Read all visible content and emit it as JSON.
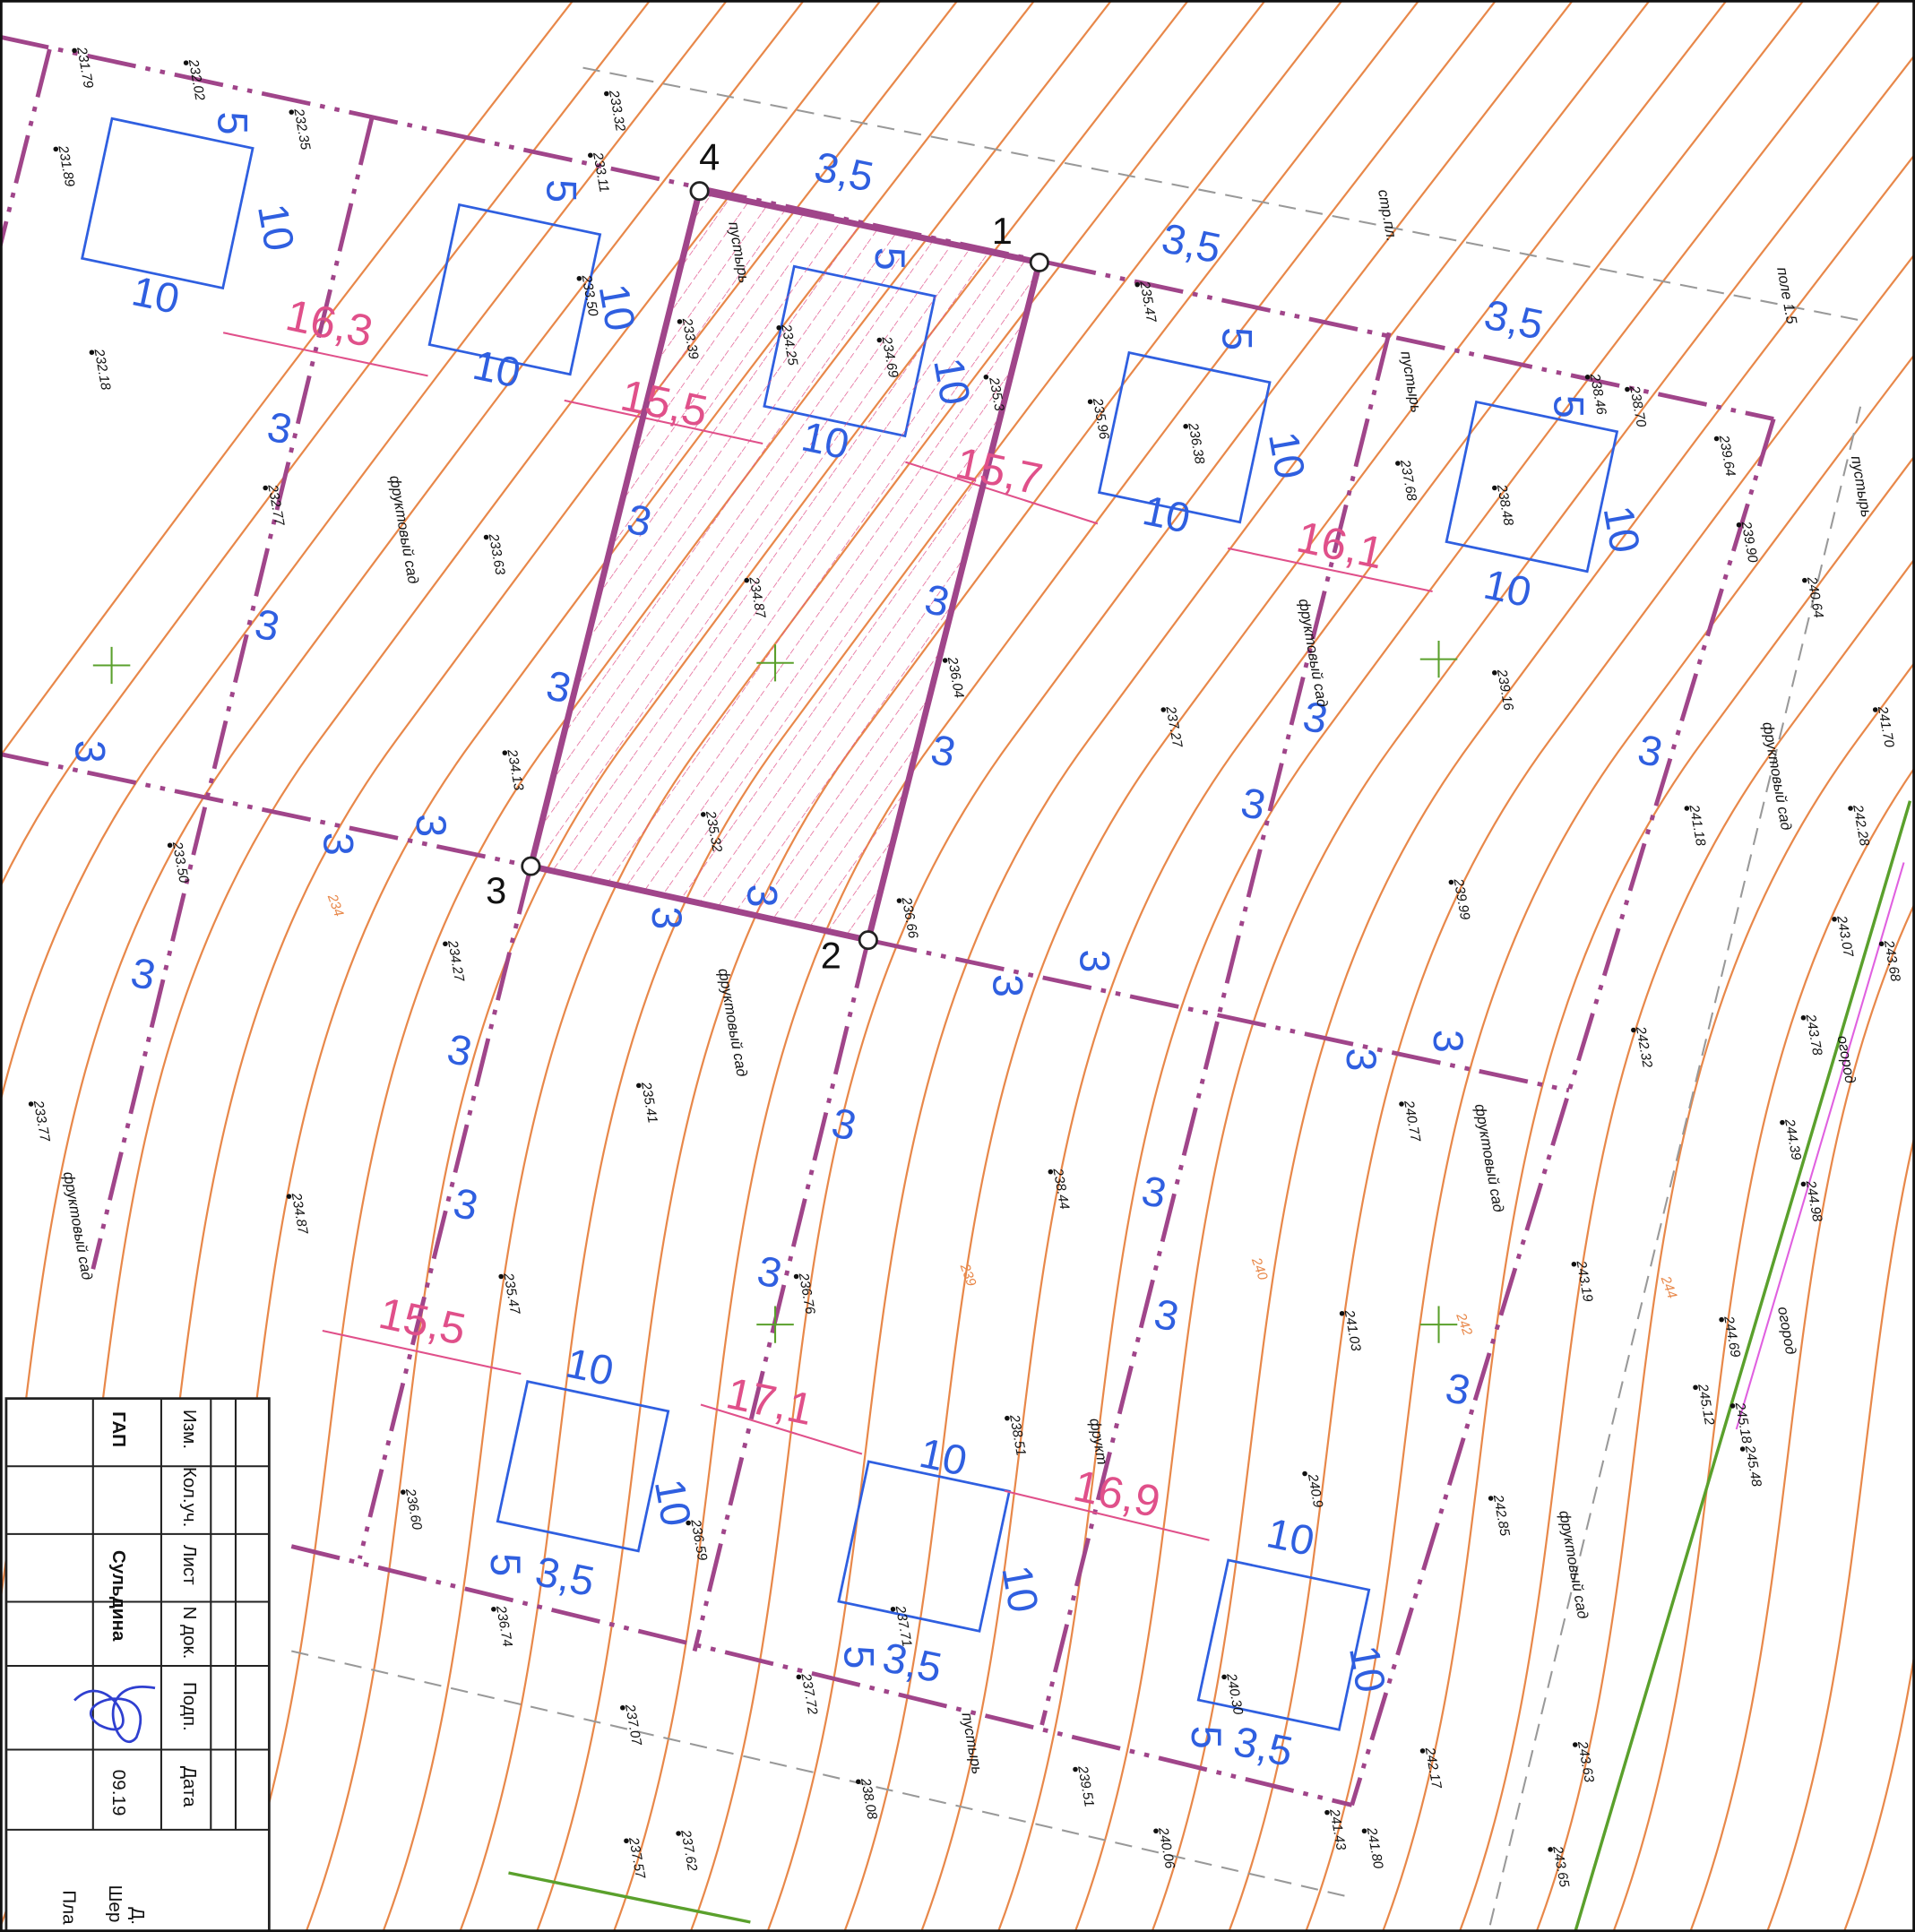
{
  "corners": [
    "1",
    "2",
    "3",
    "4"
  ],
  "dimensions_pink": [
    "16,3",
    "15,5",
    "15,7",
    "16,1",
    "15,5",
    "17,1",
    "16,9"
  ],
  "dimensions_blue": [
    "3,5",
    "5",
    "10",
    "10",
    "10",
    "10",
    "5",
    "5",
    "10",
    "10",
    "3,5",
    "5",
    "10",
    "10",
    "3,5",
    "5",
    "10",
    "10",
    "3",
    "3",
    "3",
    "3",
    "3",
    "3",
    "3",
    "3",
    "3",
    "3",
    "3",
    "3",
    "3",
    "3",
    "3",
    "3",
    "3",
    "3",
    "3",
    "3",
    "3",
    "3",
    "3",
    "3",
    "3",
    "3",
    "10",
    "10",
    "5",
    "3,5",
    "10",
    "10",
    "5",
    "3,5",
    "10",
    "10",
    "5",
    "3,5"
  ],
  "elevations": [
    "231.79",
    "232.02",
    "232.35",
    "231.89",
    "233.32",
    "233.11",
    "233.50",
    "232.18",
    "233.39",
    "234.25",
    "234.69",
    "235.3",
    "235.96",
    "236.38",
    "235.47",
    "237.68",
    "238.48",
    "238.46",
    "238.70",
    "239.64",
    "239.90",
    "240.64",
    "232.77",
    "233.63",
    "234.87",
    "236.04",
    "237.27",
    "239.16",
    "241.70",
    "242.28",
    "241.18",
    "234.13",
    "235.32",
    "236.66",
    "239.99",
    "243.07",
    "243.68",
    "233.50",
    "234.27",
    "242.32",
    "243.78",
    "240.77",
    "233.77",
    "235.41",
    "238.44",
    "244.39",
    "244.98",
    "234.87",
    "235.47",
    "236.76",
    "243.19",
    "241.03",
    "244.69",
    "245.12",
    "245.18",
    "245.48",
    "238.51",
    "240.9",
    "236.60",
    "236.59",
    "242.85",
    "237.71",
    "236.74",
    "240.30",
    "237.72",
    "237.07",
    "238.08",
    "239.51",
    "242.17",
    "243.63",
    "237.57",
    "237.62",
    "240.06",
    "241.43",
    "241.80",
    "243.65"
  ],
  "annotations": [
    "фруктовый сад",
    "фруктовый сад",
    "фруктовый сад",
    "фруктовый сад",
    "фруктовый сад",
    "фруктовый сад",
    "фруктовый сад",
    "пустырь",
    "пустырь",
    "пустырь",
    "пустырь",
    "огород",
    "огород",
    "стр.пл.",
    "поле 1.5",
    "фрукт"
  ],
  "contour_labels": [
    "234",
    "239",
    "240",
    "242",
    "244"
  ],
  "title_block": {
    "headers": [
      "Изм.",
      "Кол.уч.",
      "Лист",
      "N док.",
      "Подп.",
      "Дата"
    ],
    "role": "ГАП",
    "name": "Сульдина",
    "date": "09.19",
    "partial": [
      "Д.",
      "Шер",
      "Пла"
    ]
  }
}
